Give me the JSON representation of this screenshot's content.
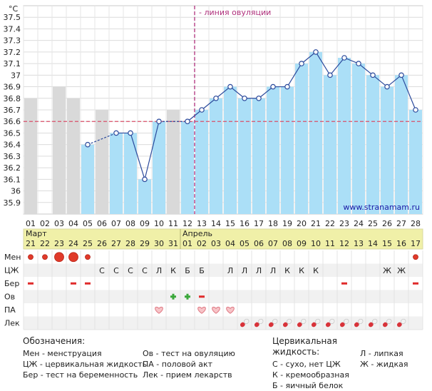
{
  "chart_data": {
    "type": "bar+line",
    "title": "",
    "ylabel": "°C",
    "ylim": [
      35.8,
      37.6
    ],
    "yticks": [
      "35.9",
      "36",
      "36.1",
      "36.2",
      "36.3",
      "36.4",
      "36.5",
      "36.6",
      "36.7",
      "36.8",
      "36.9",
      "37",
      "37.1",
      "37.2",
      "37.3",
      "37.4",
      "37.5"
    ],
    "days": [
      "01",
      "02",
      "03",
      "04",
      "05",
      "06",
      "07",
      "08",
      "09",
      "10",
      "11",
      "12",
      "13",
      "14",
      "15",
      "16",
      "17",
      "18",
      "19",
      "20",
      "21",
      "22",
      "23",
      "24",
      "25",
      "26",
      "27",
      "28"
    ],
    "bar_values": [
      36.8,
      null,
      36.9,
      36.8,
      36.4,
      36.7,
      36.5,
      36.5,
      36.1,
      36.6,
      36.7,
      36.6,
      36.7,
      36.8,
      36.9,
      36.8,
      36.8,
      36.9,
      36.9,
      37.1,
      37.2,
      37.0,
      37.15,
      37.1,
      37.0,
      36.9,
      37.0,
      36.7
    ],
    "bar_colors": [
      "gray",
      "none",
      "gray",
      "gray",
      "blue",
      "gray",
      "blue",
      "blue",
      "blue",
      "blue",
      "gray",
      "blue",
      "blue",
      "blue",
      "blue",
      "blue",
      "blue",
      "blue",
      "blue",
      "blue",
      "blue",
      "blue",
      "blue",
      "blue",
      "blue",
      "blue",
      "blue",
      "blue"
    ],
    "line_values": [
      null,
      null,
      null,
      null,
      36.4,
      null,
      36.5,
      36.5,
      36.1,
      36.6,
      null,
      36.6,
      36.7,
      36.8,
      36.9,
      36.8,
      36.8,
      36.9,
      36.9,
      37.1,
      37.2,
      37.0,
      37.15,
      37.1,
      37.0,
      36.9,
      37.0,
      36.7
    ],
    "dashed_segments": [
      [
        5,
        7
      ],
      [
        10,
        12
      ]
    ],
    "coverline_value": 36.6,
    "ovulation_day": 12,
    "ovulation_label": "- линия овуляции",
    "watermark": "www.stranamam.ru",
    "colors": {
      "bar_blue": "#abdff7",
      "bar_gray": "#d9d9d9",
      "line": "#2b4a9c",
      "coverline": "#d9506a",
      "ovulation": "#b0307c",
      "date_bg": "#f0f0a8"
    }
  },
  "calendar": {
    "month1": "Март",
    "month2": "Апрель",
    "month2_start_index": 11,
    "dates": [
      "21",
      "22",
      "23",
      "24",
      "25",
      "26",
      "27",
      "28",
      "29",
      "30",
      "31",
      "01",
      "02",
      "03",
      "04",
      "05",
      "06",
      "07",
      "08",
      "09",
      "10",
      "11",
      "12",
      "13",
      "14",
      "15",
      "16",
      "17"
    ]
  },
  "rows": {
    "labels": [
      "Мен",
      "ЦЖ",
      "Бер",
      "Ов",
      "ПА",
      "Лек"
    ],
    "men": [
      1,
      1,
      3,
      3,
      1,
      0,
      0,
      0,
      0,
      0,
      0,
      0,
      0,
      0,
      0,
      0,
      0,
      0,
      0,
      0,
      0,
      0,
      0,
      0,
      0,
      0,
      0,
      1
    ],
    "cz": [
      "",
      "",
      "",
      "",
      "",
      "С",
      "С",
      "С",
      "С",
      "Л",
      "К",
      "Б",
      "Б",
      "",
      "Л",
      "Л",
      "Л",
      "Л",
      "К",
      "К",
      "К",
      "",
      "",
      "",
      "",
      "Ж",
      "Ж",
      ""
    ],
    "ber": [
      1,
      0,
      0,
      1,
      1,
      0,
      0,
      0,
      0,
      0,
      0,
      0,
      0,
      0,
      0,
      0,
      0,
      0,
      0,
      0,
      0,
      0,
      1,
      0,
      0,
      0,
      0,
      1
    ],
    "ov": [
      "",
      "",
      "",
      "",
      "",
      "",
      "",
      "",
      "",
      "",
      "+",
      "+",
      "-",
      "",
      "",
      "",
      "",
      "",
      "",
      "",
      "",
      "",
      "",
      "",
      "",
      "",
      "",
      ""
    ],
    "pa": [
      0,
      0,
      0,
      0,
      0,
      0,
      0,
      0,
      0,
      1,
      0,
      0,
      1,
      1,
      1,
      0,
      0,
      0,
      0,
      0,
      0,
      0,
      0,
      0,
      0,
      0,
      0,
      0
    ],
    "lek": [
      0,
      0,
      0,
      0,
      0,
      0,
      0,
      0,
      0,
      0,
      0,
      0,
      0,
      0,
      0,
      1,
      1,
      1,
      1,
      1,
      1,
      1,
      1,
      1,
      1,
      1,
      1,
      0
    ]
  },
  "legend": {
    "title": "Обозначения:",
    "col1": [
      "Мен - менструация",
      "ЦЖ - цервикальная жидкость",
      "Бер - тест на беременность"
    ],
    "col2": [
      "Ов - тест на овуляцию",
      "ПА - половой акт",
      "Лек - прием лекарств"
    ],
    "fluid_title": "Цервикальная жидкость:",
    "fluid_col1": [
      "С - сухо, нет ЦЖ",
      "К - кремообразная",
      "Б - яичный белок"
    ],
    "fluid_col2": [
      "Л - липкая",
      "Ж - жидкая"
    ]
  }
}
